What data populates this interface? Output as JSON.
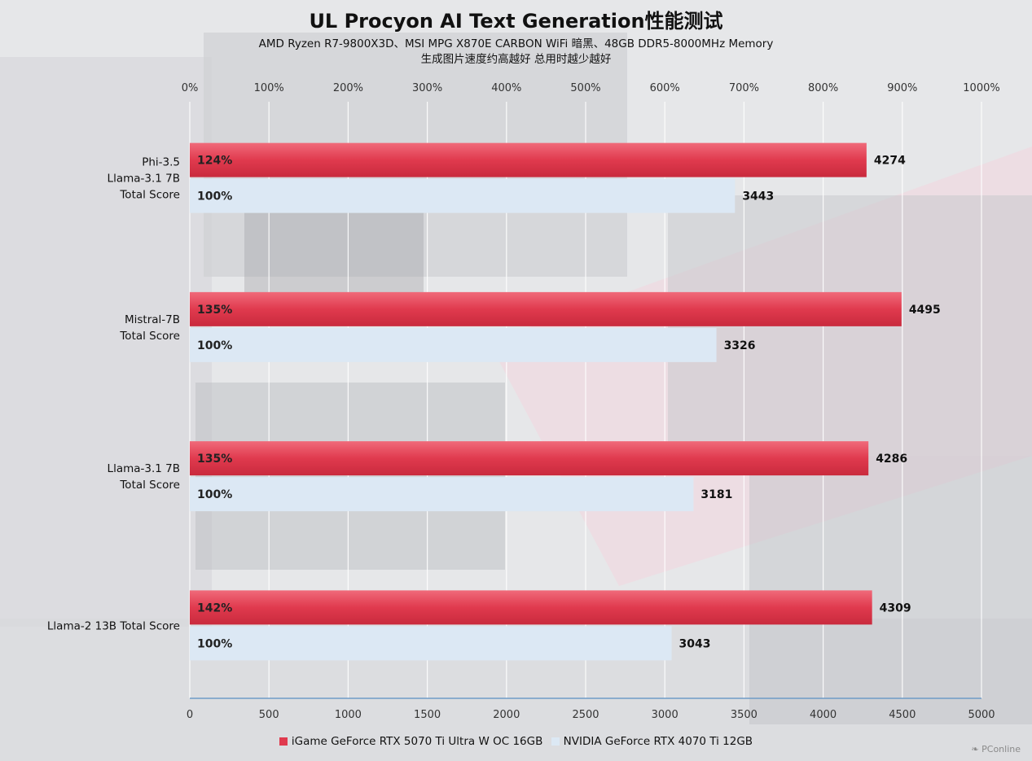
{
  "title": "UL Procyon AI Text Generation性能测试",
  "subtitle_line1": "AMD Ryzen R7-9800X3D、MSI MPG X870E CARBON WiFi 暗黑、48GB DDR5-8000MHz Memory",
  "subtitle_line2": "生成图片速度约高越好 总用时越少越好",
  "watermark": "PConline",
  "colors": {
    "series_a": "#e03a4e",
    "series_b": "#dce8f4",
    "axis": "#6f9bc7"
  },
  "chart_data": {
    "type": "bar",
    "orientation": "horizontal",
    "categories": [
      [
        "Phi-3.5",
        "Llama-3.1 7B",
        "Total Score"
      ],
      [
        "Mistral-7B",
        "Total Score"
      ],
      [
        "Llama-3.1 7B",
        "Total Score"
      ],
      [
        "Llama-2 13B Total Score"
      ]
    ],
    "series": [
      {
        "name": "iGame GeForce RTX 5070 Ti Ultra W OC 16GB",
        "values": [
          4274,
          4495,
          4286,
          4309
        ],
        "percent_labels": [
          "124%",
          "135%",
          "135%",
          "142%"
        ]
      },
      {
        "name": "NVIDIA GeForce RTX 4070 Ti 12GB",
        "values": [
          3443,
          3326,
          3181,
          3043
        ],
        "percent_labels": [
          "100%",
          "100%",
          "100%",
          "100%"
        ]
      }
    ],
    "x_bottom": {
      "range": [
        0,
        5000
      ],
      "ticks": [
        "0",
        "500",
        "1000",
        "1500",
        "2000",
        "2500",
        "3000",
        "3500",
        "4000",
        "4500",
        "5000"
      ]
    },
    "x_top": {
      "range": [
        0,
        1000
      ],
      "ticks": [
        "0%",
        "100%",
        "200%",
        "300%",
        "400%",
        "500%",
        "600%",
        "700%",
        "800%",
        "900%",
        "1000%"
      ]
    },
    "grid": true,
    "legend_position": "bottom"
  }
}
